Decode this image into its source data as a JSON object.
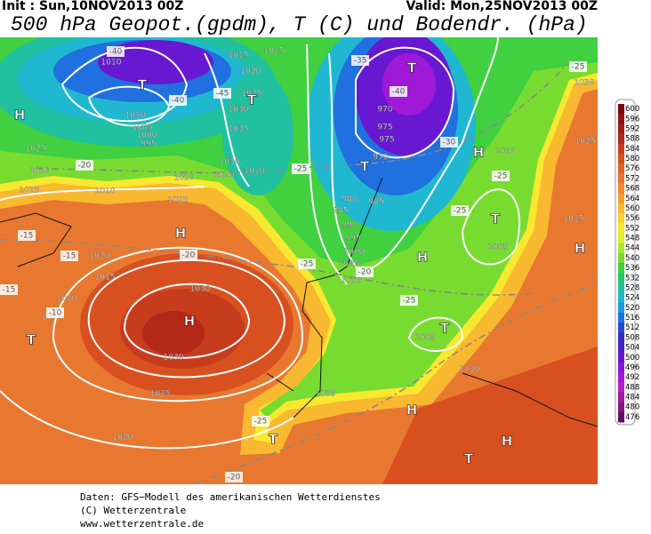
{
  "header": {
    "init": "Init : Sun,10NOV2013 00Z",
    "valid": "Valid: Mon,25NOV2013 00Z",
    "title": "500 hPa Geopot.(gpdm), T (C) und Bodendr. (hPa)"
  },
  "colorbar": {
    "labels": [
      "600",
      "596",
      "592",
      "588",
      "584",
      "580",
      "576",
      "572",
      "568",
      "564",
      "560",
      "556",
      "552",
      "548",
      "544",
      "540",
      "536",
      "532",
      "528",
      "524",
      "520",
      "516",
      "512",
      "508",
      "504",
      "500",
      "496",
      "492",
      "488",
      "484",
      "480",
      "476"
    ],
    "colors": [
      "#7a0a0a",
      "#8c1410",
      "#a01e14",
      "#b4281a",
      "#c83c1e",
      "#d85020",
      "#e06428",
      "#e87830",
      "#f08c30",
      "#f4a030",
      "#f8b830",
      "#fcd030",
      "#f8e830",
      "#d8f030",
      "#a8e830",
      "#78dc30",
      "#40d040",
      "#20c870",
      "#20c0a0",
      "#20b8d0",
      "#2098e0",
      "#2070e0",
      "#2848d8",
      "#3030c0",
      "#4820c8",
      "#6818d0",
      "#8818d8",
      "#a018d8",
      "#b820c8",
      "#a018a0",
      "#801880",
      "#601060"
    ]
  },
  "map_labels": [
    "H",
    "H",
    "H",
    "H",
    "H",
    "H",
    "H",
    "H",
    "T",
    "T",
    "T",
    "T",
    "T",
    "T",
    "T",
    "T",
    "T",
    "1010",
    "1015",
    "1015",
    "1020",
    "1035",
    "1030",
    "1035",
    "1030",
    "1020",
    "1010",
    "1010",
    "1005",
    "1000",
    "995",
    "1025",
    "1020",
    "1015",
    "1010",
    "1020",
    "1025",
    "1020",
    "1015",
    "1010",
    "1005",
    "1030",
    "1030",
    "1025",
    "1020",
    "970",
    "975",
    "975",
    "970",
    "980",
    "985",
    "985",
    "990",
    "995",
    "1000",
    "1005",
    "1010",
    "1010",
    "1005",
    "1005",
    "1010",
    "1015",
    "1015",
    "1025",
    "1030",
    "-40",
    "-40",
    "-45",
    "-35",
    "-40",
    "-30",
    "-25",
    "-25",
    "-25",
    "-20",
    "-15",
    "-15",
    "-20",
    "-25",
    "-20",
    "-25",
    "-15",
    "-10",
    "-25",
    "-20",
    "-25"
  ],
  "footer": [
    "Daten: GFS−Modell des amerikanischen Wetterdienstes",
    "(C) Wetterzentrale",
    "www.wetterzentrale.de"
  ]
}
